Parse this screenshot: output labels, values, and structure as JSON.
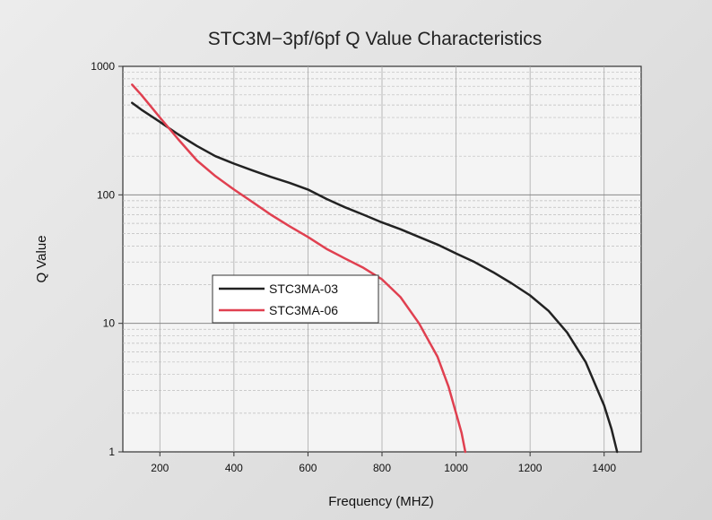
{
  "chart_data": {
    "type": "line",
    "title": "STC3M−3pf/6pf     Q Value   Characteristics",
    "xlabel": "Frequency (MHZ)",
    "ylabel": "Q Value",
    "xlim": [
      100,
      1500
    ],
    "ylim": [
      1,
      1000
    ],
    "yscale": "log",
    "grid": true,
    "legend_position": "center-left",
    "x_ticks": [
      "200",
      "400",
      "600",
      "800",
      "1000",
      "1200",
      "1400"
    ],
    "y_ticks": [
      "1",
      "10",
      "100",
      "1000"
    ],
    "series": [
      {
        "name": "STC3MA-03",
        "color": "#222222",
        "points": [
          [
            125,
            520
          ],
          [
            150,
            460
          ],
          [
            200,
            370
          ],
          [
            250,
            295
          ],
          [
            300,
            240
          ],
          [
            350,
            200
          ],
          [
            400,
            175
          ],
          [
            450,
            155
          ],
          [
            500,
            138
          ],
          [
            550,
            124
          ],
          [
            600,
            110
          ],
          [
            650,
            93
          ],
          [
            700,
            80
          ],
          [
            750,
            70
          ],
          [
            800,
            61
          ],
          [
            850,
            54
          ],
          [
            900,
            47
          ],
          [
            950,
            41
          ],
          [
            1000,
            35
          ],
          [
            1050,
            30
          ],
          [
            1100,
            25
          ],
          [
            1150,
            20.5
          ],
          [
            1200,
            16.5
          ],
          [
            1250,
            12.5
          ],
          [
            1300,
            8.5
          ],
          [
            1350,
            5
          ],
          [
            1400,
            2.3
          ],
          [
            1420,
            1.5
          ],
          [
            1435,
            1
          ]
        ]
      },
      {
        "name": "STC3MA-06",
        "color": "#e04050",
        "points": [
          [
            125,
            720
          ],
          [
            150,
            600
          ],
          [
            200,
            400
          ],
          [
            250,
            270
          ],
          [
            300,
            185
          ],
          [
            350,
            140
          ],
          [
            400,
            110
          ],
          [
            450,
            88
          ],
          [
            500,
            70
          ],
          [
            550,
            57
          ],
          [
            600,
            47
          ],
          [
            650,
            38
          ],
          [
            700,
            32
          ],
          [
            750,
            27
          ],
          [
            800,
            22
          ],
          [
            850,
            16
          ],
          [
            900,
            10
          ],
          [
            950,
            5.5
          ],
          [
            980,
            3.2
          ],
          [
            1000,
            2
          ],
          [
            1015,
            1.4
          ],
          [
            1025,
            1
          ]
        ]
      }
    ]
  }
}
